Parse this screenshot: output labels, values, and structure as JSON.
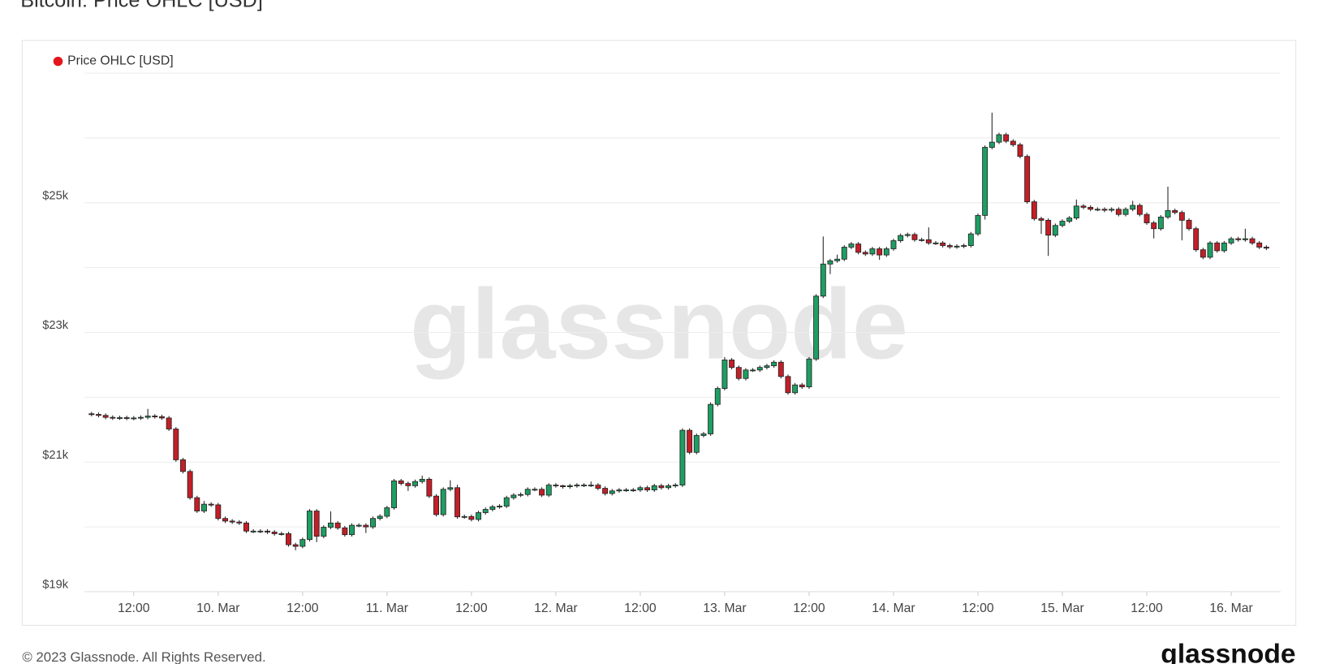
{
  "chart_data": {
    "type": "candlestick",
    "title": "Bitcoin: Price OHLC [USD]",
    "series": [
      {
        "name": "Price OHLC [USD]",
        "color": "#e3161d",
        "up_color": "#1e9e63",
        "down_color": "#c41e27",
        "open": [
          21745,
          21735,
          21720,
          21690,
          21680,
          21685,
          21675,
          21680,
          21690,
          21710,
          21700,
          21680,
          21510,
          21035,
          20855,
          20450,
          20245,
          20350,
          20340,
          20130,
          20090,
          20075,
          20060,
          19935,
          19935,
          19935,
          19920,
          19895,
          19895,
          19725,
          19700,
          19805,
          20245,
          19855,
          19995,
          20060,
          19985,
          19880,
          20025,
          20025,
          20000,
          20130,
          20165,
          20295,
          20710,
          20670,
          20635,
          20700,
          20735,
          20475,
          20190,
          20580,
          20605,
          20155,
          20160,
          20115,
          20220,
          20270,
          20310,
          20320,
          20450,
          20490,
          20500,
          20580,
          20580,
          20490,
          20645,
          20635,
          20620,
          20635,
          20645,
          20645,
          20645,
          20595,
          20515,
          20555,
          20570,
          20570,
          20570,
          20605,
          20570,
          20635,
          20605,
          20635,
          20645,
          21490,
          21150,
          21410,
          21435,
          21890,
          22135,
          22575,
          22460,
          22290,
          22420,
          22420,
          22460,
          22485,
          22540,
          22320,
          22070,
          22190,
          22160,
          22590,
          23560,
          24055,
          24105,
          24130,
          24315,
          24365,
          24235,
          24210,
          24290,
          24195,
          24290,
          24415,
          24495,
          24510,
          24430,
          24430,
          24380,
          24380,
          24340,
          24320,
          24330,
          24340,
          24520,
          24805,
          25855,
          25935,
          26050,
          25950,
          25895,
          25715,
          25015,
          24755,
          24730,
          24500,
          24650,
          24715,
          24765,
          24950,
          24930,
          24900,
          24900,
          24885,
          24900,
          24820,
          24900,
          24960,
          24820,
          24690,
          24600,
          24780,
          24880,
          24850,
          24730,
          24600,
          24275,
          24160,
          24380,
          24260,
          24380,
          24445,
          24430,
          24445,
          24380,
          24315
        ],
        "high": [
          21775,
          21765,
          21750,
          21720,
          21715,
          21715,
          21710,
          21720,
          21820,
          21740,
          21730,
          21710,
          21540,
          21065,
          20885,
          20480,
          20400,
          20380,
          20370,
          20160,
          20120,
          20105,
          20090,
          19965,
          19965,
          19965,
          19950,
          19925,
          19925,
          19755,
          19835,
          20275,
          20275,
          20025,
          20240,
          20090,
          20015,
          20055,
          20055,
          20055,
          20160,
          20195,
          20325,
          20740,
          20740,
          20700,
          20730,
          20790,
          20765,
          20505,
          20610,
          20720,
          20650,
          20190,
          20190,
          20250,
          20300,
          20340,
          20350,
          20480,
          20520,
          20530,
          20610,
          20610,
          20610,
          20675,
          20675,
          20650,
          20665,
          20675,
          20675,
          20700,
          20675,
          20625,
          20585,
          20600,
          20600,
          20600,
          20635,
          20635,
          20665,
          20665,
          20665,
          20675,
          21520,
          21520,
          21440,
          21465,
          21920,
          22165,
          22620,
          22605,
          22490,
          22450,
          22450,
          22490,
          22515,
          22570,
          22570,
          22350,
          22220,
          22220,
          22620,
          23590,
          24480,
          24135,
          24200,
          24345,
          24395,
          24395,
          24265,
          24320,
          24320,
          24320,
          24445,
          24525,
          24540,
          24540,
          24460,
          24620,
          24410,
          24410,
          24370,
          24360,
          24370,
          24550,
          24835,
          25885,
          26390,
          26080,
          26080,
          25980,
          25925,
          25745,
          25045,
          24785,
          24760,
          24680,
          24745,
          24795,
          25050,
          24980,
          24960,
          24930,
          24930,
          24930,
          24930,
          24930,
          25030,
          24990,
          24850,
          24720,
          24810,
          25250,
          24910,
          24880,
          24760,
          24630,
          24305,
          24410,
          24410,
          24410,
          24475,
          24475,
          24600,
          24475,
          24410,
          24345
        ],
        "low": [
          21705,
          21690,
          21660,
          21650,
          21650,
          21645,
          21645,
          21650,
          21660,
          21670,
          21650,
          21480,
          21005,
          20825,
          20420,
          20215,
          20215,
          20310,
          20100,
          20060,
          20045,
          20030,
          19905,
          19905,
          19905,
          19890,
          19865,
          19865,
          19695,
          19640,
          19670,
          19775,
          19765,
          19825,
          19965,
          19955,
          19850,
          19850,
          19995,
          19905,
          19970,
          20100,
          20135,
          20265,
          20640,
          20555,
          20605,
          20670,
          20445,
          20160,
          20160,
          20550,
          20125,
          20125,
          20085,
          20085,
          20190,
          20240,
          20280,
          20290,
          20420,
          20460,
          20470,
          20550,
          20460,
          20460,
          20605,
          20590,
          20590,
          20605,
          20615,
          20615,
          20565,
          20485,
          20485,
          20525,
          20540,
          20540,
          20540,
          20540,
          20540,
          20575,
          20575,
          20605,
          20615,
          21120,
          21120,
          21380,
          21405,
          21860,
          22105,
          22430,
          22260,
          22260,
          22390,
          22390,
          22430,
          22455,
          22290,
          22040,
          22040,
          22130,
          22130,
          22560,
          23530,
          23900,
          24075,
          24100,
          24285,
          24205,
          24180,
          24180,
          24120,
          24165,
          24260,
          24385,
          24465,
          24400,
          24400,
          24350,
          24350,
          24310,
          24290,
          24290,
          24300,
          24310,
          24490,
          24740,
          25825,
          25905,
          25920,
          25865,
          25685,
          24985,
          24725,
          24520,
          24180,
          24470,
          24620,
          24685,
          24735,
          24900,
          24870,
          24870,
          24855,
          24855,
          24790,
          24790,
          24870,
          24790,
          24660,
          24450,
          24570,
          24750,
          24820,
          24420,
          24570,
          24245,
          24130,
          24130,
          24230,
          24230,
          24350,
          24400,
          24400,
          24350,
          24285,
          24270
        ],
        "close": [
          21735,
          21720,
          21690,
          21680,
          21685,
          21675,
          21680,
          21690,
          21710,
          21700,
          21680,
          21510,
          21035,
          20855,
          20450,
          20245,
          20350,
          20340,
          20130,
          20090,
          20075,
          20060,
          19935,
          19935,
          19935,
          19920,
          19895,
          19895,
          19725,
          19700,
          19805,
          20245,
          19855,
          19995,
          20060,
          19985,
          19880,
          20025,
          20025,
          20000,
          20130,
          20165,
          20295,
          20710,
          20670,
          20635,
          20700,
          20735,
          20475,
          20190,
          20580,
          20605,
          20155,
          20160,
          20115,
          20220,
          20270,
          20310,
          20320,
          20450,
          20490,
          20500,
          20580,
          20580,
          20490,
          20645,
          20635,
          20620,
          20635,
          20645,
          20645,
          20645,
          20595,
          20515,
          20555,
          20570,
          20570,
          20570,
          20605,
          20570,
          20635,
          20605,
          20635,
          20645,
          21490,
          21150,
          21410,
          21435,
          21890,
          22135,
          22575,
          22460,
          22290,
          22420,
          22420,
          22460,
          22485,
          22540,
          22320,
          22070,
          22190,
          22160,
          22590,
          23560,
          24055,
          24105,
          24130,
          24315,
          24365,
          24235,
          24210,
          24290,
          24195,
          24290,
          24415,
          24495,
          24510,
          24430,
          24430,
          24380,
          24380,
          24340,
          24320,
          24330,
          24340,
          24520,
          24805,
          25855,
          25935,
          26050,
          25950,
          25895,
          25715,
          25015,
          24755,
          24730,
          24500,
          24650,
          24715,
          24765,
          24950,
          24930,
          24900,
          24900,
          24885,
          24900,
          24820,
          24900,
          24960,
          24820,
          24690,
          24600,
          24780,
          24880,
          24850,
          24730,
          24600,
          24275,
          24160,
          24380,
          24260,
          24380,
          24445,
          24430,
          24445,
          24380,
          24315,
          24300
        ]
      }
    ],
    "xlim": [
      -1,
      169
    ],
    "xticks": [
      {
        "value": 6,
        "label": "12:00"
      },
      {
        "value": 18,
        "label": "10. Mar"
      },
      {
        "value": 30,
        "label": "12:00"
      },
      {
        "value": 42,
        "label": "11. Mar"
      },
      {
        "value": 54,
        "label": "12:00"
      },
      {
        "value": 66,
        "label": "12. Mar"
      },
      {
        "value": 78,
        "label": "12:00"
      },
      {
        "value": 90,
        "label": "13. Mar"
      },
      {
        "value": 102,
        "label": "12:00"
      },
      {
        "value": 114,
        "label": "14. Mar"
      },
      {
        "value": 126,
        "label": "12:00"
      },
      {
        "value": 138,
        "label": "15. Mar"
      },
      {
        "value": 150,
        "label": "12:00"
      },
      {
        "value": 162,
        "label": "16. Mar"
      }
    ],
    "ylim": [
      19000,
      27000
    ],
    "yticks": [
      {
        "value": 19000,
        "label": "$19k"
      },
      {
        "value": 21000,
        "label": "$21k"
      },
      {
        "value": 23000,
        "label": "$23k"
      },
      {
        "value": 25000,
        "label": "$25k"
      }
    ],
    "ygrid": [
      20000,
      22000,
      24000,
      26000,
      27000
    ],
    "grid": true
  },
  "watermark": "glassnode",
  "footer": "© 2023 Glassnode. All Rights Reserved.",
  "brand": "glassnode"
}
